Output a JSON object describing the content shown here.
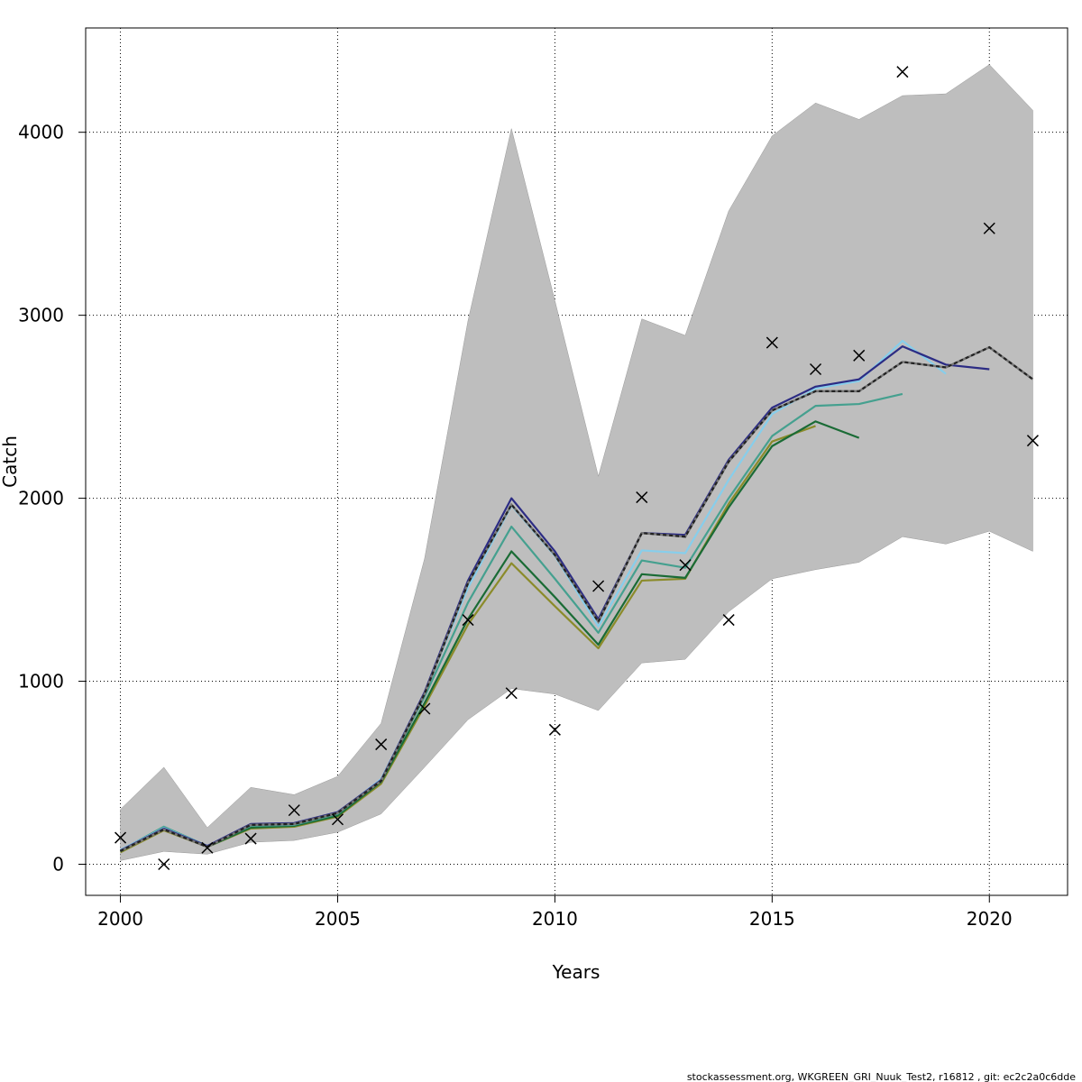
{
  "chart_data": {
    "type": "line",
    "xlabel": "Years",
    "ylabel": "Catch",
    "xlim": [
      1999.2,
      2021.8
    ],
    "ylim": [
      -170,
      4570
    ],
    "x_ticks": [
      2000,
      2005,
      2010,
      2015,
      2020
    ],
    "y_ticks": [
      0,
      1000,
      2000,
      3000,
      4000
    ],
    "grid": true,
    "footer": "stockassessment.org, WKGREEN_GRI_Nuuk_Test2, r16812 , git: ec2c2a0c6dde",
    "confidence_band": {
      "color": "#bebebe",
      "x": [
        2000,
        2001,
        2002,
        2003,
        2004,
        2005,
        2006,
        2007,
        2008,
        2009,
        2010,
        2011,
        2012,
        2013,
        2014,
        2015,
        2016,
        2017,
        2018,
        2019,
        2020,
        2021
      ],
      "upper": [
        300,
        530,
        200,
        420,
        380,
        480,
        770,
        1670,
        2970,
        4020,
        3080,
        2120,
        2980,
        2890,
        3570,
        3980,
        4160,
        4070,
        4200,
        4210,
        4370,
        4120
      ],
      "lower": [
        20,
        70,
        55,
        120,
        130,
        175,
        275,
        530,
        790,
        960,
        930,
        840,
        1100,
        1120,
        1380,
        1560,
        1610,
        1650,
        1790,
        1750,
        1820,
        1710
      ]
    },
    "observed": {
      "marker": "x",
      "color": "#000000",
      "x": [
        2000,
        2001,
        2002,
        2003,
        2004,
        2005,
        2006,
        2007,
        2008,
        2009,
        2010,
        2011,
        2012,
        2013,
        2014,
        2015,
        2016,
        2017,
        2018,
        2020,
        2021
      ],
      "y": [
        145,
        0,
        90,
        140,
        295,
        245,
        655,
        850,
        1335,
        935,
        735,
        1520,
        2005,
        1635,
        1335,
        2850,
        2705,
        2780,
        4330,
        3475,
        2315
      ]
    },
    "series": [
      {
        "color": "#8b8b2a",
        "dashed": false,
        "x": [
          2000,
          2001,
          2002,
          2003,
          2004,
          2005,
          2006,
          2007,
          2008,
          2009,
          2010,
          2011,
          2012,
          2013,
          2014,
          2015,
          2016
        ],
        "y": [
          65,
          185,
          95,
          195,
          205,
          260,
          440,
          865,
          1310,
          1645,
          1410,
          1180,
          1550,
          1560,
          1970,
          2310,
          2395
        ]
      },
      {
        "color": "#1a6b35",
        "dashed": false,
        "x": [
          2000,
          2001,
          2002,
          2003,
          2004,
          2005,
          2006,
          2007,
          2008,
          2009,
          2010,
          2011,
          2012,
          2013,
          2014,
          2015,
          2016,
          2017
        ],
        "y": [
          70,
          195,
          95,
          200,
          210,
          265,
          450,
          880,
          1340,
          1710,
          1460,
          1200,
          1585,
          1565,
          1950,
          2285,
          2420,
          2330
        ]
      },
      {
        "color": "#45a08f",
        "dashed": false,
        "x": [
          2000,
          2001,
          2002,
          2003,
          2004,
          2005,
          2006,
          2007,
          2008,
          2009,
          2010,
          2011,
          2012,
          2013,
          2014,
          2015,
          2016,
          2017,
          2018
        ],
        "y": [
          75,
          205,
          100,
          210,
          215,
          275,
          460,
          915,
          1430,
          1845,
          1560,
          1265,
          1660,
          1620,
          2000,
          2340,
          2505,
          2515,
          2570
        ]
      },
      {
        "color": "#87ceeb",
        "dashed": false,
        "x": [
          2000,
          2001,
          2002,
          2003,
          2004,
          2005,
          2006,
          2007,
          2008,
          2009,
          2010,
          2011,
          2012,
          2013,
          2014,
          2015,
          2016,
          2017,
          2018,
          2019
        ],
        "y": [
          78,
          198,
          100,
          215,
          220,
          280,
          465,
          935,
          1510,
          1960,
          1685,
          1300,
          1715,
          1700,
          2100,
          2460,
          2600,
          2640,
          2860,
          2680
        ]
      },
      {
        "color": "#2c2c84",
        "dashed": false,
        "x": [
          2000,
          2001,
          2002,
          2003,
          2004,
          2005,
          2006,
          2007,
          2008,
          2009,
          2010,
          2011,
          2012,
          2013,
          2014,
          2015,
          2016,
          2017,
          2018,
          2019,
          2020
        ],
        "y": [
          75,
          195,
          100,
          220,
          225,
          285,
          460,
          940,
          1550,
          2000,
          1710,
          1340,
          1810,
          1800,
          2210,
          2495,
          2610,
          2650,
          2830,
          2730,
          2705
        ]
      },
      {
        "color": "#222222",
        "dashed": true,
        "x": [
          2000,
          2001,
          2002,
          2003,
          2004,
          2005,
          2006,
          2007,
          2008,
          2009,
          2010,
          2011,
          2012,
          2013,
          2014,
          2015,
          2016,
          2017,
          2018,
          2019,
          2020,
          2021
        ],
        "y": [
          72,
          190,
          95,
          215,
          220,
          280,
          455,
          930,
          1535,
          1965,
          1690,
          1325,
          1810,
          1790,
          2200,
          2480,
          2585,
          2585,
          2745,
          2715,
          2825,
          2650
        ]
      }
    ]
  }
}
